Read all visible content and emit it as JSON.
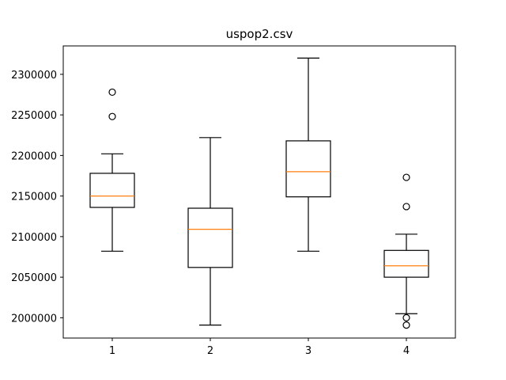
{
  "chart_data": {
    "type": "box",
    "title": "uspop2.csv",
    "xlabel": "",
    "ylabel": "",
    "categories": [
      "1",
      "2",
      "3",
      "4"
    ],
    "ylim": [
      1975000,
      2335000
    ],
    "yticks": [
      2000000,
      2050000,
      2100000,
      2150000,
      2200000,
      2250000,
      2300000
    ],
    "ytick_labels": [
      "2000000",
      "2050000",
      "2100000",
      "2150000",
      "2200000",
      "2250000",
      "2300000"
    ],
    "grid": false,
    "boxes": [
      {
        "label": "1",
        "whisker_low": 2082000,
        "q1": 2136000,
        "median": 2150000,
        "q3": 2178000,
        "whisker_high": 2202000,
        "outliers": [
          2248000,
          2278000
        ]
      },
      {
        "label": "2",
        "whisker_low": 1991000,
        "q1": 2062000,
        "median": 2109000,
        "q3": 2135000,
        "whisker_high": 2222000,
        "outliers": []
      },
      {
        "label": "3",
        "whisker_low": 2082000,
        "q1": 2149000,
        "median": 2180000,
        "q3": 2218000,
        "whisker_high": 2320000,
        "outliers": []
      },
      {
        "label": "4",
        "whisker_low": 2005000,
        "q1": 2050000,
        "median": 2064000,
        "q3": 2083000,
        "whisker_high": 2103000,
        "outliers": [
          1991000,
          2000000,
          2137000,
          2173000
        ]
      }
    ],
    "colors": {
      "box": "#000000",
      "median": "#ff7f0e",
      "outlier": "#000000"
    }
  }
}
